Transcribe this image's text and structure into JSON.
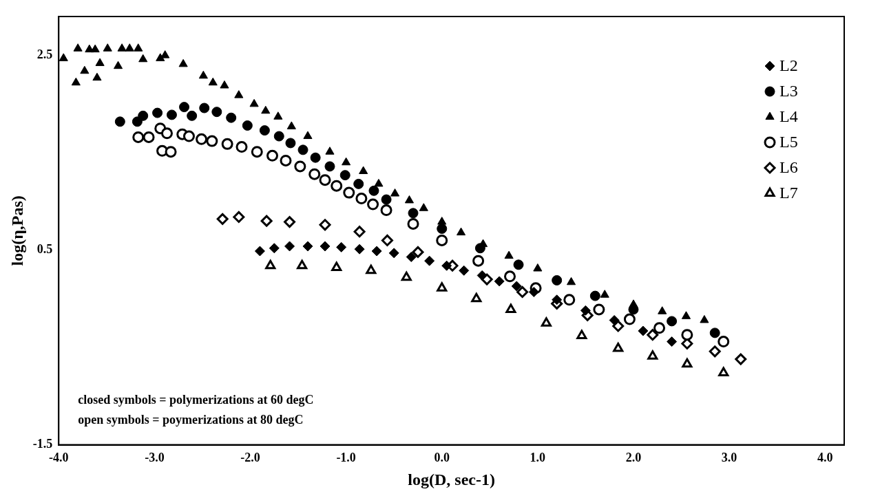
{
  "chart_data": {
    "type": "scatter",
    "xlabel": "log(D, sec-1)",
    "ylabel": "log(η,Pas)",
    "xlim": [
      -4,
      4.2
    ],
    "ylim": [
      -1.5,
      2.9
    ],
    "xticks": [
      {
        "value": -4,
        "label": "-4.0"
      },
      {
        "value": -3,
        "label": "-3.0"
      },
      {
        "value": -2,
        "label": "-2.0"
      },
      {
        "value": -1,
        "label": "-1.0"
      },
      {
        "value": 0,
        "label": "0.0"
      },
      {
        "value": 1,
        "label": "1.0"
      },
      {
        "value": 2,
        "label": "2.0"
      },
      {
        "value": 3,
        "label": "3.0"
      },
      {
        "value": 4,
        "label": "4.0"
      }
    ],
    "yticks": [
      -1.5,
      0.5,
      2.5
    ],
    "grid": false,
    "legend": "top right",
    "annotations": [
      "closed symbols = polymerizations at 60 degC",
      "open symbols = poymerizations at 80 degC"
    ],
    "series": [
      {
        "name": "L2",
        "color": "#000000",
        "marker": "diamond",
        "x": [
          -1.9,
          -1.75,
          -1.59,
          -1.4,
          -1.22,
          -1.05,
          -0.86,
          -0.68,
          -0.5,
          -0.32,
          -0.13,
          0.05,
          0.23,
          0.42,
          0.6,
          0.78,
          0.96,
          1.2,
          1.5,
          1.8,
          2.1,
          2.4
        ],
        "values": [
          0.49,
          0.52,
          0.54,
          0.54,
          0.54,
          0.53,
          0.51,
          0.49,
          0.47,
          0.43,
          0.39,
          0.34,
          0.29,
          0.24,
          0.18,
          0.13,
          0.07,
          -0.01,
          -0.12,
          -0.22,
          -0.33,
          -0.44
        ]
      },
      {
        "name": "L3",
        "color": "#000000",
        "marker": "circle",
        "x": [
          -3.36,
          -3.18,
          -3.12,
          -2.97,
          -2.82,
          -2.69,
          -2.61,
          -2.48,
          -2.35,
          -2.2,
          -2.03,
          -1.85,
          -1.7,
          -1.58,
          -1.45,
          -1.32,
          -1.17,
          -1.01,
          -0.87,
          -0.71,
          -0.58,
          -0.3,
          0.0,
          0.4,
          0.8,
          1.2,
          1.6,
          2.0,
          2.4,
          2.85
        ],
        "values": [
          1.82,
          1.82,
          1.88,
          1.91,
          1.89,
          1.97,
          1.88,
          1.96,
          1.92,
          1.86,
          1.78,
          1.73,
          1.67,
          1.6,
          1.53,
          1.45,
          1.36,
          1.27,
          1.18,
          1.11,
          1.02,
          0.88,
          0.72,
          0.52,
          0.35,
          0.19,
          0.03,
          -0.11,
          -0.23,
          -0.35
        ]
      },
      {
        "name": "L4",
        "color": "#000000",
        "marker": "triangle",
        "x": [
          -3.95,
          -3.82,
          -3.8,
          -3.73,
          -3.68,
          -3.62,
          -3.6,
          -3.57,
          -3.49,
          -3.38,
          -3.34,
          -3.26,
          -3.17,
          -3.12,
          -2.94,
          -2.89,
          -2.7,
          -2.49,
          -2.39,
          -2.27,
          -2.12,
          -1.96,
          -1.84,
          -1.71,
          -1.57,
          -1.4,
          -1.17,
          -1.0,
          -0.82,
          -0.66,
          -0.49,
          -0.34,
          -0.19,
          0.0,
          0.2,
          0.43,
          0.7,
          1.0,
          1.35,
          1.7,
          2.0,
          2.3,
          2.55,
          2.74
        ],
        "values": [
          2.47,
          2.22,
          2.57,
          2.34,
          2.56,
          2.56,
          2.27,
          2.42,
          2.57,
          2.39,
          2.57,
          2.57,
          2.57,
          2.46,
          2.47,
          2.5,
          2.41,
          2.29,
          2.22,
          2.19,
          2.09,
          2.0,
          1.93,
          1.87,
          1.77,
          1.67,
          1.51,
          1.4,
          1.31,
          1.18,
          1.08,
          1.01,
          0.93,
          0.79,
          0.68,
          0.56,
          0.44,
          0.31,
          0.17,
          0.04,
          -0.06,
          -0.13,
          -0.18,
          -0.22
        ]
      },
      {
        "name": "L5",
        "color": "#ffffff",
        "marker": "circle",
        "x": [
          -3.17,
          -3.06,
          -2.94,
          -2.92,
          -2.87,
          -2.83,
          -2.71,
          -2.64,
          -2.51,
          -2.4,
          -2.24,
          -2.09,
          -1.93,
          -1.77,
          -1.63,
          -1.48,
          -1.33,
          -1.22,
          -1.1,
          -0.97,
          -0.84,
          -0.72,
          -0.58,
          -0.3,
          0.0,
          0.38,
          0.71,
          0.98,
          1.33,
          1.64,
          1.96,
          2.27,
          2.56,
          2.94
        ],
        "values": [
          1.66,
          1.66,
          1.75,
          1.52,
          1.7,
          1.51,
          1.69,
          1.67,
          1.64,
          1.62,
          1.59,
          1.56,
          1.51,
          1.47,
          1.42,
          1.36,
          1.28,
          1.22,
          1.16,
          1.09,
          1.03,
          0.97,
          0.91,
          0.77,
          0.6,
          0.39,
          0.23,
          0.11,
          -0.01,
          -0.11,
          -0.21,
          -0.3,
          -0.37,
          -0.44
        ]
      },
      {
        "name": "L6",
        "color": "#ffffff",
        "marker": "diamond",
        "x": [
          -2.29,
          -2.12,
          -1.83,
          -1.59,
          -1.22,
          -0.86,
          -0.57,
          -0.25,
          0.11,
          0.47,
          0.84,
          1.2,
          1.52,
          1.84,
          2.2,
          2.56,
          2.85,
          3.12
        ],
        "values": [
          0.82,
          0.84,
          0.8,
          0.79,
          0.76,
          0.69,
          0.6,
          0.48,
          0.34,
          0.2,
          0.07,
          -0.05,
          -0.17,
          -0.28,
          -0.37,
          -0.46,
          -0.54,
          -0.62
        ]
      },
      {
        "name": "L7",
        "color": "#ffffff",
        "marker": "triangle",
        "x": [
          -1.79,
          -1.46,
          -1.1,
          -0.74,
          -0.37,
          0.0,
          0.36,
          0.72,
          1.09,
          1.46,
          1.84,
          2.2,
          2.56,
          2.94
        ],
        "values": [
          0.34,
          0.34,
          0.32,
          0.29,
          0.22,
          0.11,
          0.0,
          -0.11,
          -0.25,
          -0.38,
          -0.51,
          -0.59,
          -0.67,
          -0.76
        ]
      }
    ]
  }
}
